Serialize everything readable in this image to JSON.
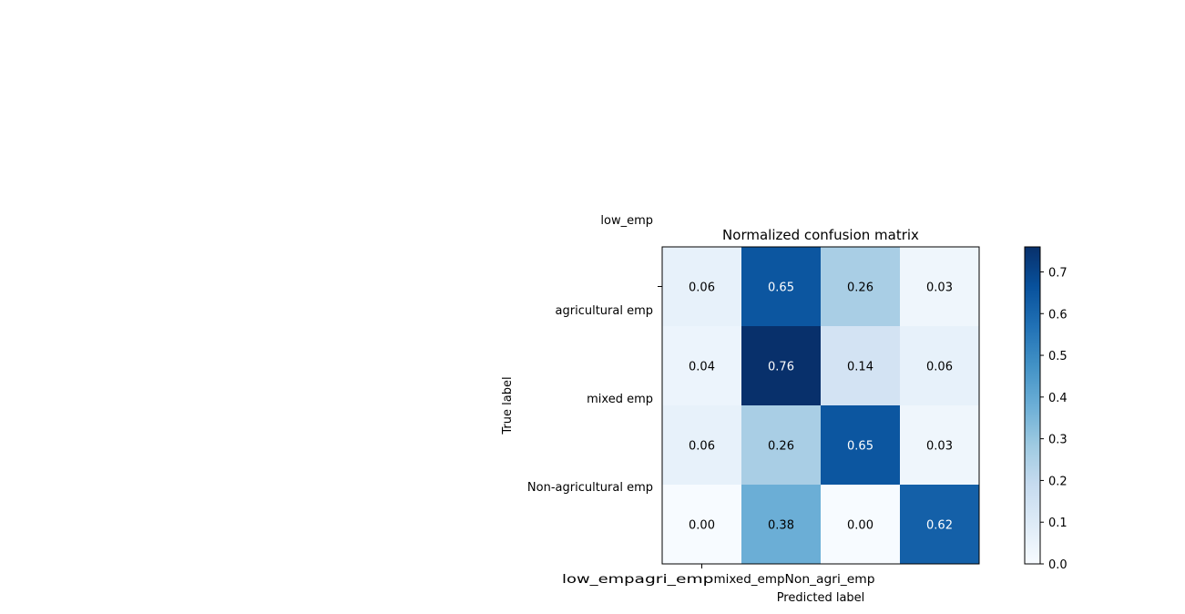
{
  "chart_data": {
    "type": "heatmap",
    "title": "Normalized confusion matrix",
    "xlabel": "Predicted label",
    "ylabel": "True label",
    "x_tick_labels": [
      "low_emp",
      "agri_emp",
      "mixed_emp",
      "Non_agri_emp"
    ],
    "y_tick_labels": [
      "low_emp",
      "agricultural emp",
      "mixed emp",
      "Non-agricultural emp"
    ],
    "values": [
      [
        0.06,
        0.65,
        0.26,
        0.03
      ],
      [
        0.04,
        0.76,
        0.14,
        0.06
      ],
      [
        0.06,
        0.26,
        0.65,
        0.03
      ],
      [
        0.0,
        0.38,
        0.0,
        0.62
      ]
    ],
    "value_labels": [
      [
        "0.06",
        "0.65",
        "0.26",
        "0.03"
      ],
      [
        "0.04",
        "0.76",
        "0.14",
        "0.06"
      ],
      [
        "0.06",
        "0.26",
        "0.65",
        "0.03"
      ],
      [
        "0.00",
        "0.38",
        "0.00",
        "0.62"
      ]
    ],
    "colormap": "Blues",
    "colorbar": {
      "range": [
        0.0,
        0.76
      ],
      "ticks": [
        0.0,
        0.1,
        0.2,
        0.3,
        0.4,
        0.5,
        0.6,
        0.7
      ],
      "tick_labels": [
        "0.0",
        "0.1",
        "0.2",
        "0.3",
        "0.4",
        "0.5",
        "0.6",
        "0.7"
      ]
    },
    "text_colors": {
      "dark": "#000000",
      "light": "#ffffff"
    }
  }
}
